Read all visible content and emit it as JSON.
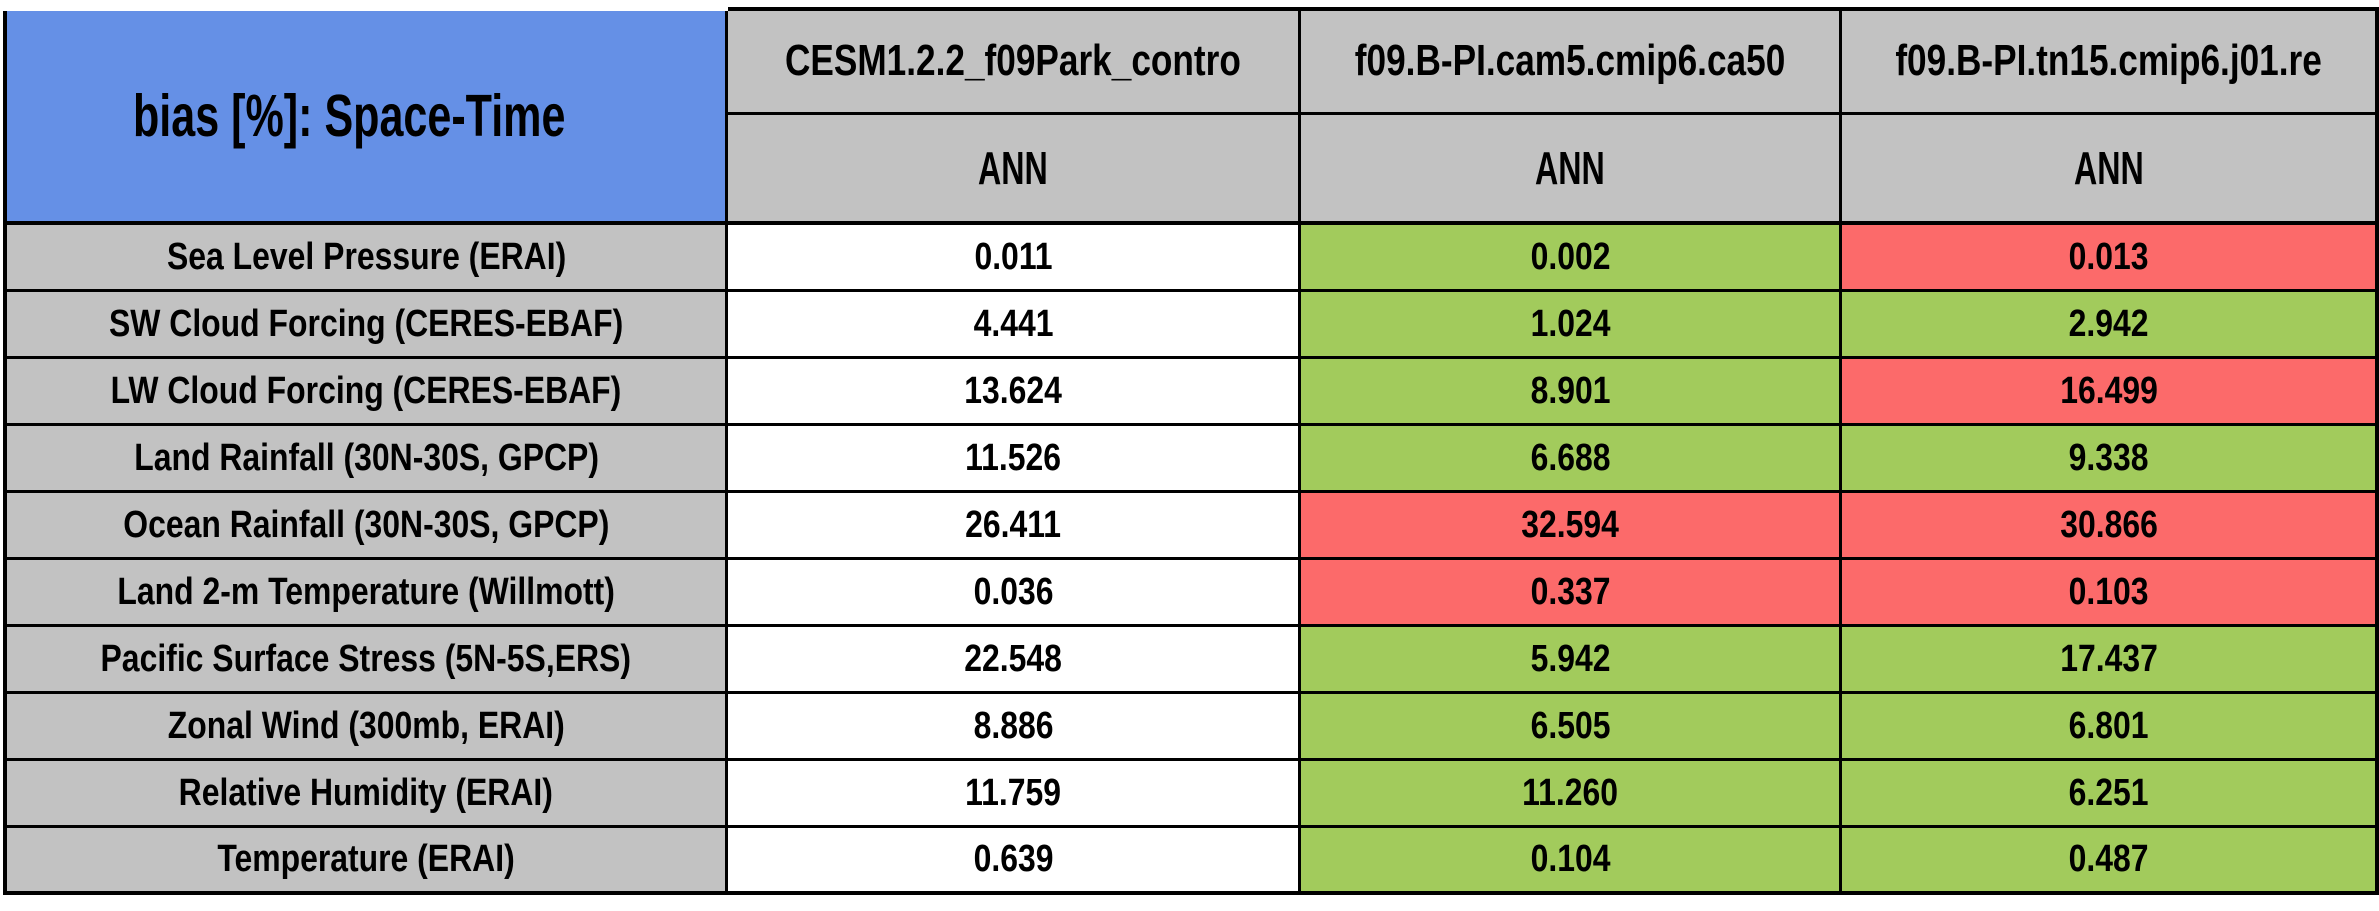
{
  "ui_table": {
    "title": "bias [%]: Space-Time",
    "columns": [
      {
        "name": "CESM1.2.2_f09Park_contro",
        "season": "ANN"
      },
      {
        "name": "f09.B-PI.cam5.cmip6.ca50",
        "season": "ANN"
      },
      {
        "name": "f09.B-PI.tn15.cmip6.j01.re",
        "season": "ANN"
      }
    ],
    "rows": [
      {
        "label": "Sea Level Pressure (ERAI)",
        "values": [
          "0.011",
          "0.002",
          "0.013"
        ],
        "colors": [
          "white",
          "green",
          "red"
        ]
      },
      {
        "label": "SW Cloud Forcing (CERES-EBAF)",
        "values": [
          "4.441",
          "1.024",
          "2.942"
        ],
        "colors": [
          "white",
          "green",
          "green"
        ]
      },
      {
        "label": "LW Cloud Forcing (CERES-EBAF)",
        "values": [
          "13.624",
          "8.901",
          "16.499"
        ],
        "colors": [
          "white",
          "green",
          "red"
        ]
      },
      {
        "label": "Land Rainfall (30N-30S, GPCP)",
        "values": [
          "11.526",
          "6.688",
          "9.338"
        ],
        "colors": [
          "white",
          "green",
          "green"
        ]
      },
      {
        "label": "Ocean Rainfall (30N-30S, GPCP)",
        "values": [
          "26.411",
          "32.594",
          "30.866"
        ],
        "colors": [
          "white",
          "red",
          "red"
        ]
      },
      {
        "label": "Land 2-m Temperature (Willmott)",
        "values": [
          "0.036",
          "0.337",
          "0.103"
        ],
        "colors": [
          "white",
          "red",
          "red"
        ]
      },
      {
        "label": "Pacific Surface Stress (5N-5S,ERS)",
        "values": [
          "22.548",
          "5.942",
          "17.437"
        ],
        "colors": [
          "white",
          "green",
          "green"
        ]
      },
      {
        "label": "Zonal Wind (300mb, ERAI)",
        "values": [
          "8.886",
          "6.505",
          "6.801"
        ],
        "colors": [
          "white",
          "green",
          "green"
        ]
      },
      {
        "label": "Relative Humidity (ERAI)",
        "values": [
          "11.759",
          "11.260",
          "6.251"
        ],
        "colors": [
          "white",
          "green",
          "green"
        ]
      },
      {
        "label": "Temperature (ERAI)",
        "values": [
          "0.639",
          "0.104",
          "0.487"
        ],
        "colors": [
          "white",
          "green",
          "green"
        ]
      }
    ]
  },
  "colors": {
    "header_blue": "#6590E6",
    "cell_gray": "#C2C2C2",
    "good_green": "#A2CB5C",
    "bad_red": "#FC6A6A",
    "neutral_white": "#FFFFFF",
    "border_black": "#000000"
  },
  "chart_data": {
    "type": "table",
    "title": "bias [%]: Space-Time",
    "columns": [
      "CESM1.2.2_f09Park_contro",
      "f09.B-PI.cam5.cmip6.ca50",
      "f09.B-PI.tn15.cmip6.j01.re"
    ],
    "sub_columns": [
      "ANN",
      "ANN",
      "ANN"
    ],
    "categories": [
      "Sea Level Pressure (ERAI)",
      "SW Cloud Forcing (CERES-EBAF)",
      "LW Cloud Forcing (CERES-EBAF)",
      "Land Rainfall (30N-30S, GPCP)",
      "Ocean Rainfall (30N-30S, GPCP)",
      "Land 2-m Temperature (Willmott)",
      "Pacific Surface Stress (5N-5S,ERS)",
      "Zonal Wind (300mb, ERAI)",
      "Relative Humidity (ERAI)",
      "Temperature (ERAI)"
    ],
    "series": [
      {
        "name": "CESM1.2.2_f09Park_contro",
        "values": [
          0.011,
          4.441,
          13.624,
          11.526,
          26.411,
          0.036,
          22.548,
          8.886,
          11.759,
          0.639
        ]
      },
      {
        "name": "f09.B-PI.cam5.cmip6.ca50",
        "values": [
          0.002,
          1.024,
          8.901,
          6.688,
          32.594,
          0.337,
          5.942,
          6.505,
          11.26,
          0.104
        ]
      },
      {
        "name": "f09.B-PI.tn15.cmip6.j01.re",
        "values": [
          0.013,
          2.942,
          16.499,
          9.338,
          30.866,
          0.103,
          17.437,
          6.801,
          6.251,
          0.487
        ]
      }
    ],
    "cell_highlights": [
      [
        "white",
        "green",
        "red"
      ],
      [
        "white",
        "green",
        "green"
      ],
      [
        "white",
        "green",
        "red"
      ],
      [
        "white",
        "green",
        "green"
      ],
      [
        "white",
        "red",
        "red"
      ],
      [
        "white",
        "red",
        "red"
      ],
      [
        "white",
        "green",
        "green"
      ],
      [
        "white",
        "green",
        "green"
      ],
      [
        "white",
        "green",
        "green"
      ],
      [
        "white",
        "green",
        "green"
      ]
    ]
  }
}
